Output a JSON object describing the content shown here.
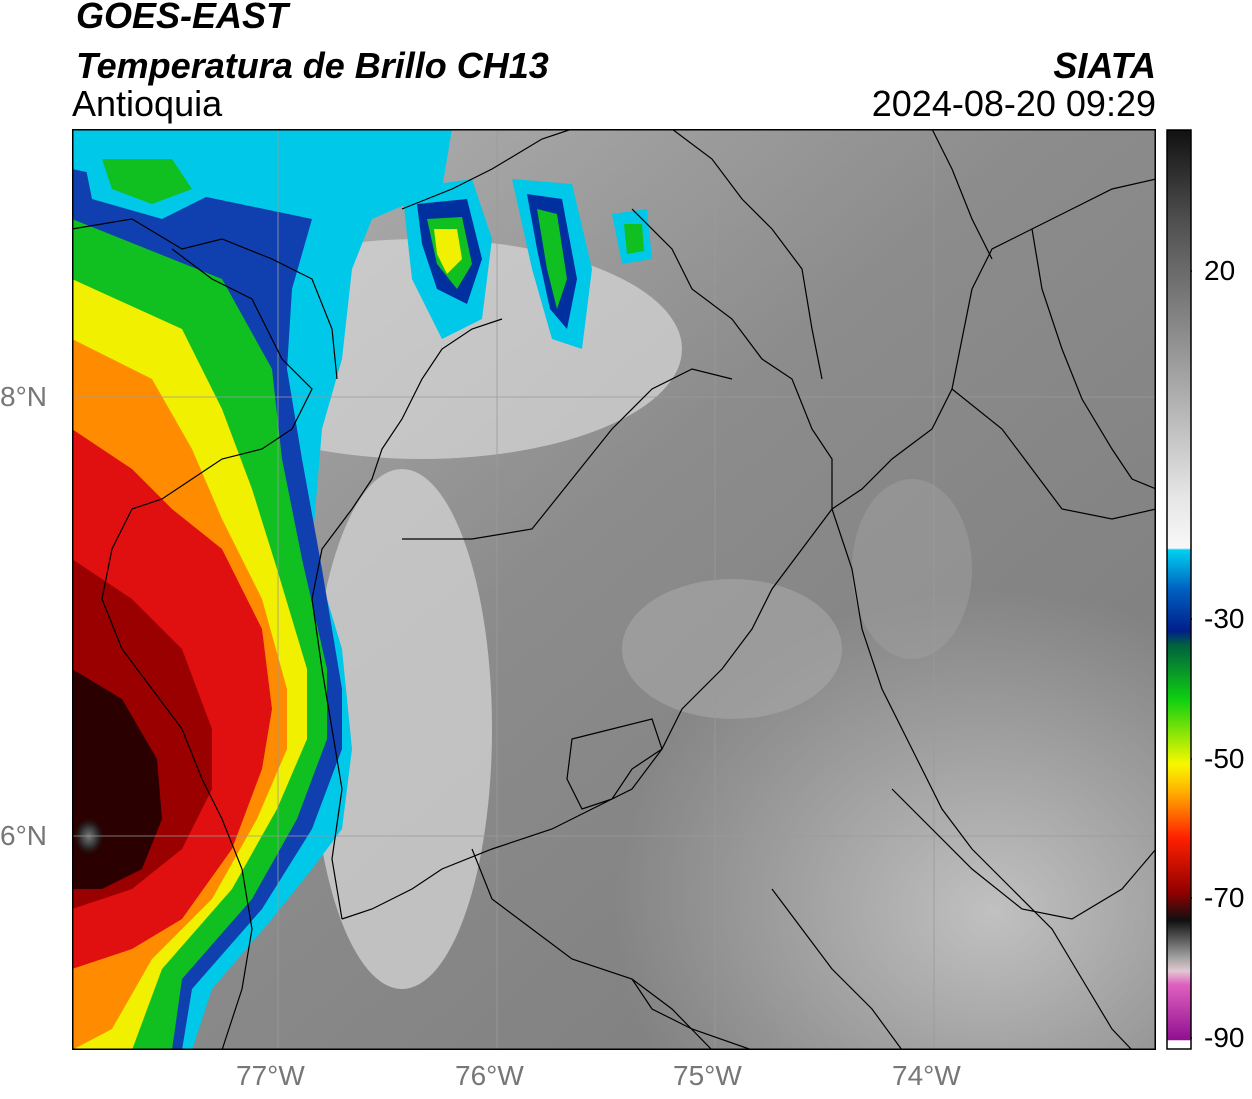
{
  "header": {
    "satellite": "GOES-EAST",
    "product": "Temperatura de Brillo CH13",
    "region": "Antioquia",
    "source": "SIATA",
    "datetime": "2024-08-20 09:29"
  },
  "map": {
    "lon_range": [
      -77.95,
      -72.9
    ],
    "lat_range": [
      4.95,
      9.15
    ],
    "lon_ticks": [
      {
        "value": -77,
        "label": "77°W"
      },
      {
        "value": -76,
        "label": "76°W"
      },
      {
        "value": -75,
        "label": "75°W"
      },
      {
        "value": -74,
        "label": "74°W"
      }
    ],
    "lat_ticks": [
      {
        "value": 8,
        "label": "8°N"
      },
      {
        "value": 6,
        "label": "6°N"
      }
    ],
    "grid": true
  },
  "colorbar": {
    "range": [
      -90,
      30
    ],
    "ticks": [
      {
        "value": 20,
        "label": "20"
      },
      {
        "value": -30,
        "label": "-30"
      },
      {
        "value": -50,
        "label": "-50"
      },
      {
        "value": -70,
        "label": "-70"
      },
      {
        "value": -90,
        "label": "-90"
      }
    ]
  },
  "colors": {
    "cold_tops": "#1a0000",
    "deep_red": "#d00000",
    "orange": "#ff8c00",
    "yellow": "#f0f000",
    "green": "#00c000",
    "blue": "#002a9c",
    "cyan": "#00c8e8",
    "land_gray": "#8a8a8a"
  }
}
